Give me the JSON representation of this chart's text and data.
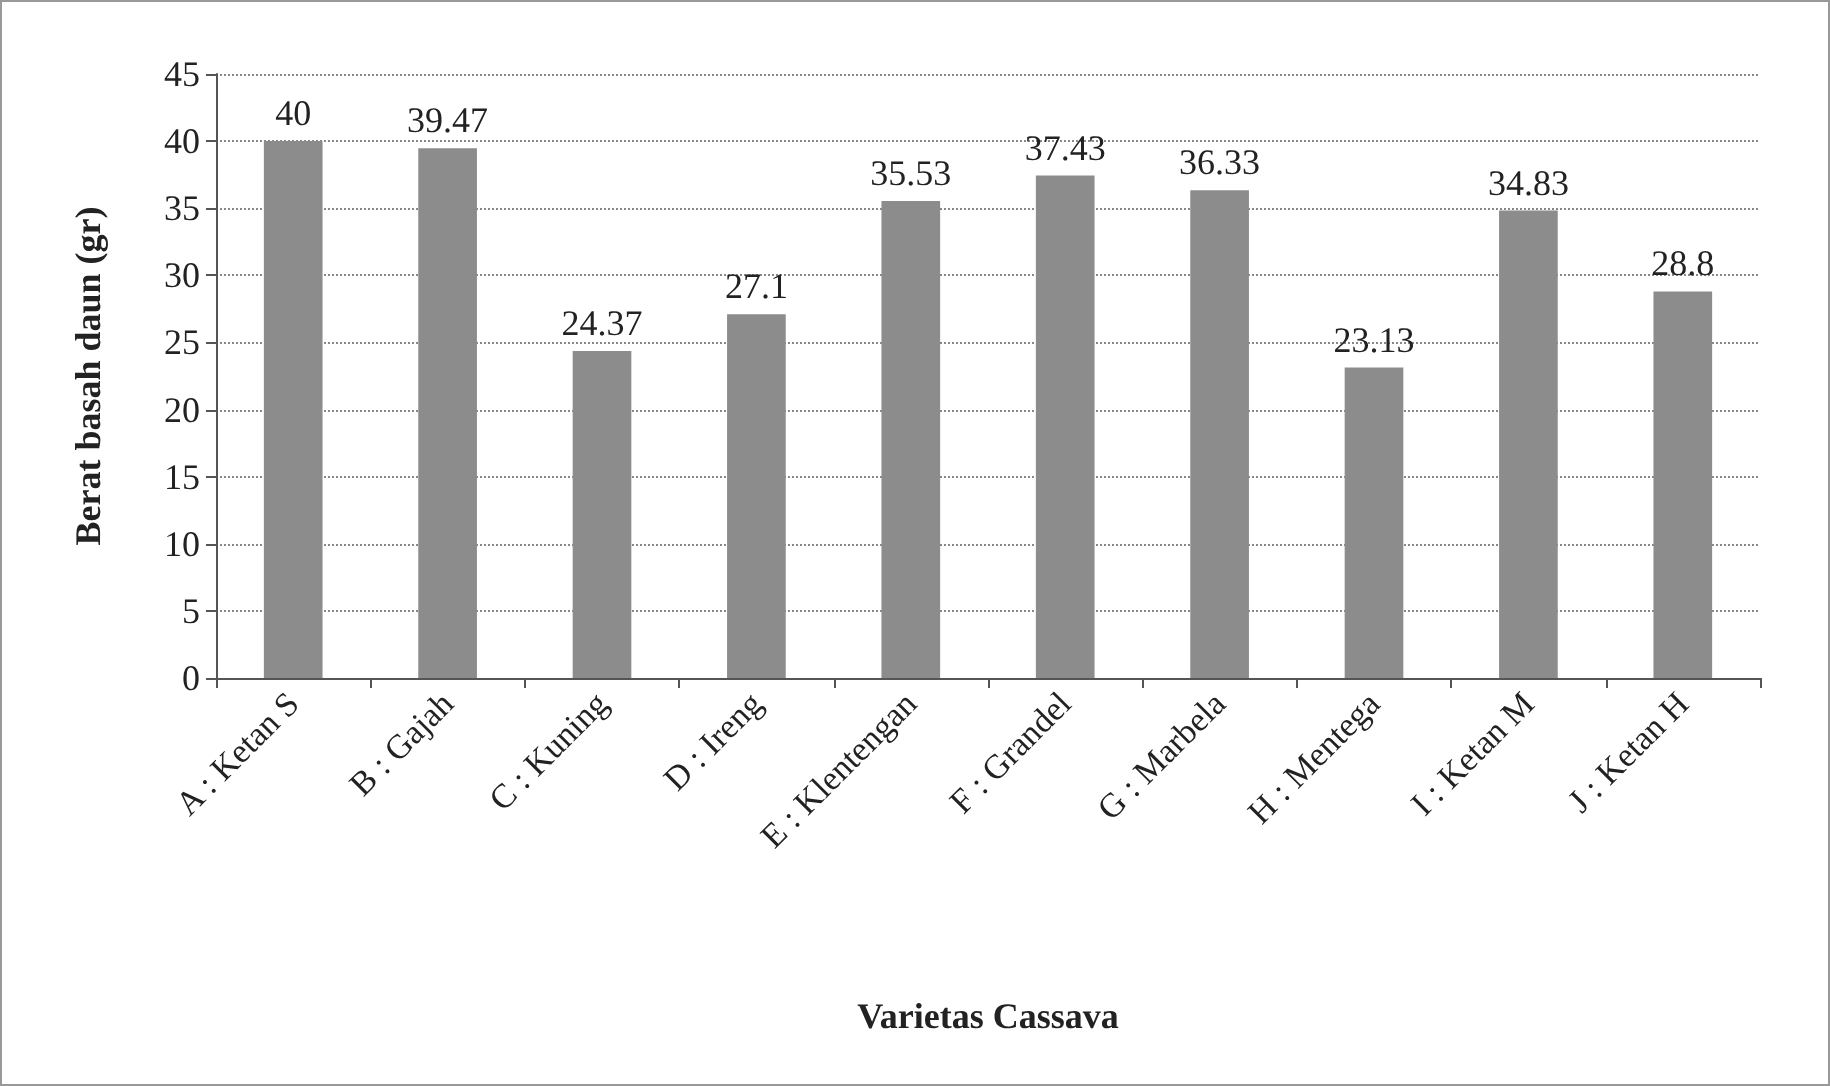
{
  "chart_data": {
    "type": "bar",
    "xlabel": "Varietas Cassava",
    "ylabel": "Berat basah daun (gr)",
    "categories": [
      "A : Ketan S",
      "B : Gajah",
      "C : Kuning",
      "D : Ireng",
      "E : Klentengan",
      "F : Grandel",
      "G : Marbela",
      "H : Mentega",
      "I : Ketan M",
      "J : Ketan H"
    ],
    "values": [
      40,
      39.47,
      24.37,
      27.1,
      35.53,
      37.43,
      36.33,
      23.13,
      34.83,
      28.8
    ],
    "color": "#8c8c8c",
    "ylim": [
      0,
      45
    ],
    "yticks": [
      0,
      5,
      10,
      15,
      20,
      25,
      30,
      35,
      40,
      45
    ],
    "grid": "y",
    "data_labels": true
  }
}
